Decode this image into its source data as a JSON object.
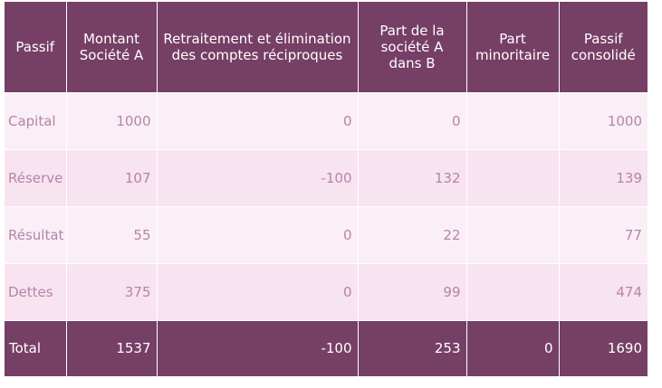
{
  "table": {
    "headers": [
      "Passif",
      "Montant Société A",
      "Retraitement et élimination des comptes réciproques",
      "Part de la société A dans B",
      "Part minoritaire",
      "Passif consolidé"
    ],
    "rows": [
      {
        "label": "Capital",
        "montant": "1000",
        "retraitement": "0",
        "part_a": "0",
        "part_min": "",
        "consolide": "1000"
      },
      {
        "label": "Réserve",
        "montant": "107",
        "retraitement": "-100",
        "part_a": "132",
        "part_min": "",
        "consolide": "139"
      },
      {
        "label": "Résultat",
        "montant": "55",
        "retraitement": "0",
        "part_a": "22",
        "part_min": "",
        "consolide": "77"
      },
      {
        "label": "Dettes",
        "montant": "375",
        "retraitement": "0",
        "part_a": "99",
        "part_min": "",
        "consolide": "474"
      }
    ],
    "total": {
      "label": "Total",
      "montant": "1537",
      "retraitement": "-100",
      "part_a": "253",
      "part_min": "0",
      "consolide": "1690"
    }
  },
  "colors": {
    "header_bg": "#763f66",
    "row_odd_bg": "#faeff6",
    "row_even_bg": "#f8e3f1",
    "row_text": "#b584a7",
    "header_text": "#ffffff"
  }
}
